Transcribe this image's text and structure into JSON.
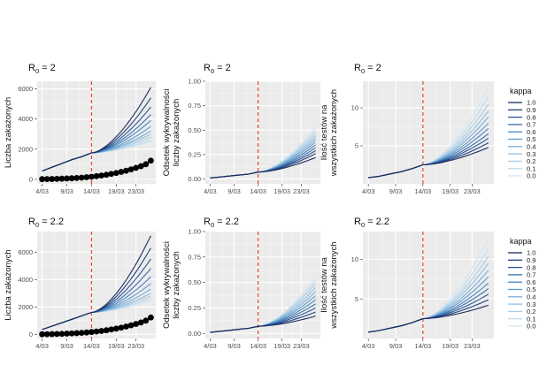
{
  "kappa_colors": [
    "#1a2d5c",
    "#233e7a",
    "#2c5696",
    "#366fae",
    "#4b86c0",
    "#5f99cc",
    "#78add7",
    "#91bfe0",
    "#a8cde6",
    "#bfdbed",
    "#d2e6f3"
  ],
  "vline_color": "#e8442a",
  "chart_data": [
    {
      "type": "line",
      "title_prefix": "R",
      "title_sub": "0",
      "title_value": "= 2",
      "ylabel": [
        "Liczba zakażonych"
      ],
      "xticks": [
        {
          "x": 4,
          "label": "4/03"
        },
        {
          "x": 9,
          "label": "9/03"
        },
        {
          "x": 14,
          "label": "14/03"
        },
        {
          "x": 19,
          "label": "19/03"
        },
        {
          "x": 23,
          "label": "23/03"
        }
      ],
      "xlim": [
        3,
        27
      ],
      "ylim": [
        -300,
        6500
      ],
      "yticks": [
        0,
        2000,
        4000,
        6000
      ],
      "vline": 14,
      "history": {
        "x": [
          4,
          6,
          8,
          10,
          12,
          14
        ],
        "y": [
          550,
          800,
          1050,
          1300,
          1500,
          1750
        ]
      },
      "end_values": [
        6100,
        5400,
        4800,
        4300,
        3900,
        3500,
        3200,
        3000,
        2800,
        2600,
        2500
      ],
      "legend": null,
      "points": {
        "x": [
          4,
          5,
          6,
          7,
          8,
          9,
          10,
          11,
          12,
          13,
          14,
          15,
          16,
          17,
          18,
          19,
          20,
          21,
          22,
          23,
          24,
          25,
          26
        ],
        "y": [
          10,
          15,
          20,
          30,
          40,
          55,
          70,
          90,
          110,
          140,
          170,
          210,
          250,
          300,
          360,
          420,
          490,
          570,
          660,
          760,
          870,
          1000,
          1240
        ]
      }
    },
    {
      "type": "line",
      "title_prefix": "R",
      "title_sub": "0",
      "title_value": "= 2",
      "ylabel": [
        "Odsetek wykrywalności",
        "liczby zakażonych"
      ],
      "xticks": [
        {
          "x": 4,
          "label": "4/03"
        },
        {
          "x": 9,
          "label": "9/03"
        },
        {
          "x": 14,
          "label": "14/03"
        },
        {
          "x": 19,
          "label": "19/03"
        },
        {
          "x": 23,
          "label": "23/03"
        }
      ],
      "xlim": [
        3,
        27
      ],
      "ylim": [
        -0.05,
        1.0
      ],
      "yticks": [
        0.0,
        0.25,
        0.5,
        0.75,
        1.0
      ],
      "ytick_labels": [
        "0.00",
        "0.25",
        "0.50",
        "0.75",
        "1.00"
      ],
      "vline": 14,
      "history": {
        "x": [
          4,
          6,
          8,
          10,
          12,
          14
        ],
        "y": [
          0.01,
          0.02,
          0.03,
          0.04,
          0.05,
          0.07
        ]
      },
      "end_values": [
        0.22,
        0.26,
        0.29,
        0.32,
        0.35,
        0.38,
        0.41,
        0.44,
        0.47,
        0.5,
        0.53
      ],
      "legend": null,
      "points": null
    },
    {
      "type": "line",
      "title_prefix": "R",
      "title_sub": "0",
      "title_value": "= 2",
      "ylabel": [
        "Ilość testów na",
        "wszystkich zakażonych"
      ],
      "xticks": [
        {
          "x": 4,
          "label": "4/03"
        },
        {
          "x": 9,
          "label": "9/03"
        },
        {
          "x": 14,
          "label": "14/03"
        },
        {
          "x": 19,
          "label": "19/03"
        },
        {
          "x": 23,
          "label": "23/03"
        }
      ],
      "xlim": [
        3,
        27
      ],
      "ylim": [
        0,
        13.5
      ],
      "yticks": [
        5,
        10
      ],
      "vline": 14,
      "history": {
        "x": [
          4,
          6,
          8,
          10,
          12,
          14
        ],
        "y": [
          0.8,
          1.0,
          1.3,
          1.6,
          2.0,
          2.5
        ]
      },
      "end_values": [
        4.8,
        5.4,
        6.0,
        6.6,
        7.3,
        8.0,
        8.8,
        9.6,
        10.5,
        11.5,
        12.6
      ],
      "legend": {
        "title": "kappa",
        "labels": [
          "1.0",
          "0.9",
          "0.8",
          "0.7",
          "0.6",
          "0.5",
          "0.4",
          "0.3",
          "0.2",
          "0.1",
          "0.0"
        ]
      },
      "points": null
    },
    {
      "type": "line",
      "title_prefix": "R",
      "title_sub": "0",
      "title_value": "= 2.2",
      "ylabel": [
        "Liczba zakażonych"
      ],
      "xticks": [
        {
          "x": 4,
          "label": "4/03"
        },
        {
          "x": 9,
          "label": "9/03"
        },
        {
          "x": 14,
          "label": "14/03"
        },
        {
          "x": 19,
          "label": "19/03"
        },
        {
          "x": 23,
          "label": "23/03"
        }
      ],
      "xlim": [
        3,
        27
      ],
      "ylim": [
        -300,
        7500
      ],
      "yticks": [
        0,
        2000,
        4000,
        6000
      ],
      "vline": 14,
      "history": {
        "x": [
          4,
          6,
          8,
          10,
          12,
          14
        ],
        "y": [
          350,
          600,
          850,
          1100,
          1350,
          1600
        ]
      },
      "end_values": [
        7200,
        6300,
        5500,
        4800,
        4200,
        3700,
        3300,
        3000,
        2800,
        2600,
        2450
      ],
      "legend": null,
      "points": {
        "x": [
          4,
          5,
          6,
          7,
          8,
          9,
          10,
          11,
          12,
          13,
          14,
          15,
          16,
          17,
          18,
          19,
          20,
          21,
          22,
          23,
          24,
          25,
          26
        ],
        "y": [
          10,
          15,
          20,
          30,
          40,
          55,
          70,
          90,
          110,
          140,
          170,
          210,
          250,
          300,
          360,
          420,
          490,
          570,
          660,
          760,
          870,
          1000,
          1230
        ]
      }
    },
    {
      "type": "line",
      "title_prefix": "R",
      "title_sub": "0",
      "title_value": "= 2.2",
      "ylabel": [
        "Odsetek wykrywalności",
        "liczby zakażonych"
      ],
      "xticks": [
        {
          "x": 4,
          "label": "4/03"
        },
        {
          "x": 9,
          "label": "9/03"
        },
        {
          "x": 14,
          "label": "14/03"
        },
        {
          "x": 19,
          "label": "19/03"
        },
        {
          "x": 23,
          "label": "23/03"
        }
      ],
      "xlim": [
        3,
        27
      ],
      "ylim": [
        -0.05,
        1.0
      ],
      "yticks": [
        0.0,
        0.25,
        0.5,
        0.75,
        1.0
      ],
      "ytick_labels": [
        "0.00",
        "0.25",
        "0.50",
        "0.75",
        "1.00"
      ],
      "vline": 14,
      "history": {
        "x": [
          4,
          6,
          8,
          10,
          12,
          14
        ],
        "y": [
          0.01,
          0.02,
          0.03,
          0.04,
          0.05,
          0.07
        ]
      },
      "end_values": [
        0.17,
        0.21,
        0.25,
        0.29,
        0.33,
        0.37,
        0.41,
        0.45,
        0.49,
        0.52,
        0.55
      ],
      "legend": null,
      "points": null
    },
    {
      "type": "line",
      "title_prefix": "R",
      "title_sub": "0",
      "title_value": "= 2.2",
      "ylabel": [
        "Ilość testów na",
        "wszystkich zakażonych"
      ],
      "xticks": [
        {
          "x": 4,
          "label": "4/03"
        },
        {
          "x": 9,
          "label": "9/03"
        },
        {
          "x": 14,
          "label": "14/03"
        },
        {
          "x": 19,
          "label": "19/03"
        },
        {
          "x": 23,
          "label": "23/03"
        }
      ],
      "xlim": [
        3,
        27
      ],
      "ylim": [
        0,
        13.5
      ],
      "yticks": [
        5,
        10
      ],
      "vline": 14,
      "history": {
        "x": [
          4,
          6,
          8,
          10,
          12,
          14
        ],
        "y": [
          0.8,
          1.0,
          1.3,
          1.6,
          2.0,
          2.5
        ]
      },
      "end_values": [
        4.2,
        4.9,
        5.6,
        6.3,
        7.0,
        7.8,
        8.6,
        9.5,
        10.4,
        11.4,
        12.6
      ],
      "legend": {
        "title": "kappa",
        "labels": [
          "1.0",
          "0.9",
          "0.8",
          "0.7",
          "0.6",
          "0.5",
          "0.4",
          "0.3",
          "0.2",
          "0.1",
          "0.0"
        ]
      },
      "points": null
    }
  ]
}
